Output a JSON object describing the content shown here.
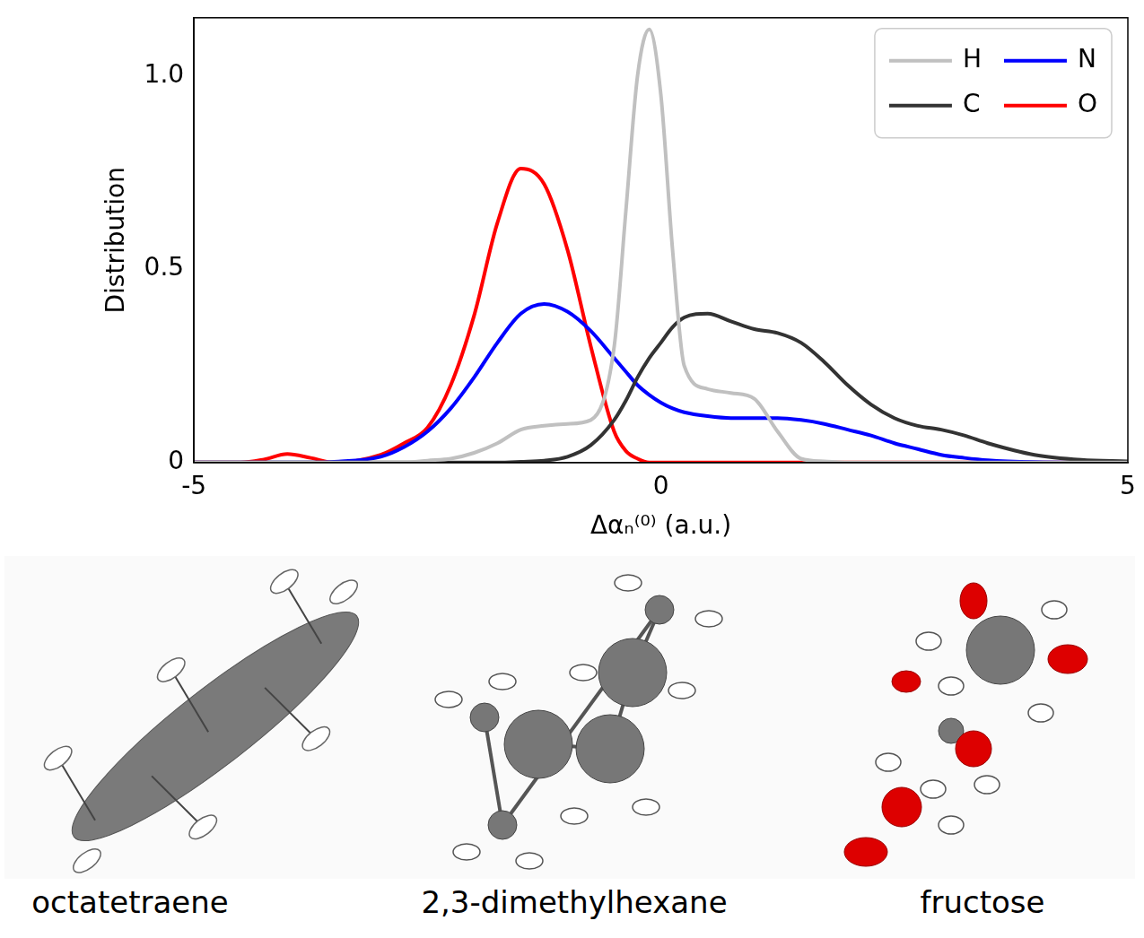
{
  "chart_data": {
    "type": "line",
    "x_label": "Δαₙ⁽⁰⁾ (a.u.)",
    "y_label": "Distribution",
    "x": [
      -5,
      -4.5,
      -4.25,
      -4,
      -3.75,
      -3.5,
      -3,
      -2.75,
      -2.5,
      -2.25,
      -2,
      -1.75,
      -1.5,
      -1.25,
      -1,
      -0.75,
      -0.5,
      -0.375,
      -0.25,
      -0.125,
      0,
      0.125,
      0.25,
      0.5,
      0.75,
      1,
      1.25,
      1.5,
      1.75,
      2,
      2.25,
      2.5,
      2.75,
      3,
      3.25,
      3.5,
      4,
      4.5,
      5
    ],
    "series": [
      {
        "name": "H",
        "color": "#c0c0c0",
        "values": [
          0,
          0,
          0,
          0,
          0,
          0,
          0,
          0,
          0.005,
          0.01,
          0.025,
          0.05,
          0.085,
          0.095,
          0.1,
          0.11,
          0.3,
          0.65,
          1.0,
          1.12,
          0.95,
          0.55,
          0.25,
          0.19,
          0.18,
          0.165,
          0.08,
          0.01,
          0.003,
          0,
          0,
          0,
          0,
          0,
          0,
          0,
          0,
          0,
          0
        ]
      },
      {
        "name": "C",
        "color": "#333333",
        "values": [
          0,
          0,
          0,
          0,
          0,
          0,
          0,
          0,
          0,
          0,
          0,
          0,
          0.002,
          0.005,
          0.015,
          0.045,
          0.11,
          0.16,
          0.22,
          0.27,
          0.31,
          0.35,
          0.375,
          0.385,
          0.365,
          0.345,
          0.335,
          0.31,
          0.26,
          0.2,
          0.15,
          0.115,
          0.095,
          0.085,
          0.07,
          0.05,
          0.02,
          0.007,
          0.003
        ]
      },
      {
        "name": "N",
        "color": "#0000ff",
        "values": [
          0,
          0,
          0,
          0,
          0,
          0.002,
          0.015,
          0.04,
          0.08,
          0.14,
          0.22,
          0.31,
          0.385,
          0.41,
          0.39,
          0.34,
          0.27,
          0.235,
          0.2,
          0.175,
          0.155,
          0.14,
          0.13,
          0.12,
          0.115,
          0.115,
          0.115,
          0.11,
          0.1,
          0.085,
          0.07,
          0.05,
          0.035,
          0.02,
          0.012,
          0.006,
          0.001,
          0,
          0
        ]
      },
      {
        "name": "O",
        "color": "#ff0000",
        "values": [
          0,
          0,
          0.008,
          0.022,
          0.012,
          0,
          0.02,
          0.05,
          0.09,
          0.2,
          0.38,
          0.62,
          0.76,
          0.72,
          0.55,
          0.3,
          0.08,
          0.03,
          0.01,
          0,
          0,
          0,
          0,
          0,
          0,
          0,
          0,
          0,
          0,
          0,
          0,
          0,
          0,
          0,
          0,
          0,
          0,
          0,
          0
        ]
      }
    ],
    "xlim": [
      -5,
      5
    ],
    "xticks": [
      -5,
      0,
      5
    ],
    "ylim": [
      0,
      1.15
    ],
    "yticks": [
      0,
      0.5,
      {
        "value": 1,
        "label": "1.0"
      }
    ],
    "grid": false,
    "legend": "upper right"
  },
  "molecules": [
    "octatetraene",
    "2,3-dimethylhexane",
    "fructose"
  ]
}
